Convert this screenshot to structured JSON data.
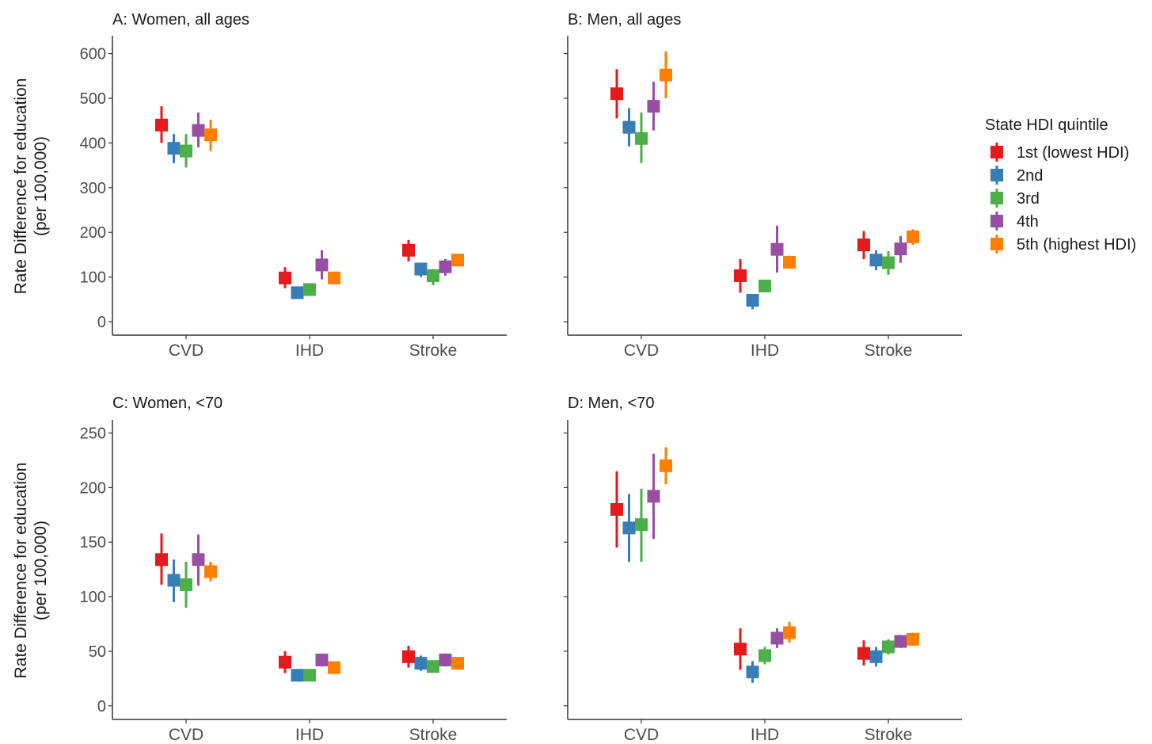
{
  "colors": [
    "#e41a1c",
    "#377eb8",
    "#4daf4a",
    "#984ea3",
    "#ff7f00"
  ],
  "legend": {
    "title": "State HDI quintile",
    "items": [
      "1st (lowest HDI)",
      "2nd",
      "3rd",
      "4th",
      "5th (highest HDI)"
    ]
  },
  "ylabel_line1": "Rate Difference for education",
  "ylabel_line2": "(per 100,000)",
  "chart_data": [
    {
      "type": "errorbar",
      "title": "A: Women, all ages",
      "categories": [
        "CVD",
        "IHD",
        "Stroke"
      ],
      "ylim": [
        -30,
        640
      ],
      "yticks": [
        0,
        100,
        200,
        300,
        400,
        500,
        600
      ],
      "series": [
        {
          "name": "1st (lowest HDI)",
          "values": [
            440,
            98,
            160
          ],
          "lower": [
            400,
            75,
            135
          ],
          "upper": [
            482,
            122,
            183
          ]
        },
        {
          "name": "2nd",
          "values": [
            388,
            65,
            118
          ],
          "lower": [
            355,
            58,
            100
          ],
          "upper": [
            420,
            72,
            132
          ]
        },
        {
          "name": "3rd",
          "values": [
            382,
            72,
            103
          ],
          "lower": [
            345,
            62,
            82
          ],
          "upper": [
            420,
            80,
            118
          ]
        },
        {
          "name": "4th",
          "values": [
            428,
            127,
            123
          ],
          "lower": [
            390,
            95,
            103
          ],
          "upper": [
            468,
            160,
            140
          ]
        },
        {
          "name": "5th (highest HDI)",
          "values": [
            418,
            98,
            138
          ],
          "lower": [
            382,
            90,
            130
          ],
          "upper": [
            452,
            106,
            146
          ]
        }
      ]
    },
    {
      "type": "errorbar",
      "title": "B: Men, all ages",
      "categories": [
        "CVD",
        "IHD",
        "Stroke"
      ],
      "ylim": [
        -30,
        640
      ],
      "yticks": [
        0,
        100,
        200,
        300,
        400,
        500,
        600
      ],
      "series": [
        {
          "name": "1st (lowest HDI)",
          "values": [
            510,
            103,
            172
          ],
          "lower": [
            455,
            65,
            140
          ],
          "upper": [
            565,
            140,
            203
          ]
        },
        {
          "name": "2nd",
          "values": [
            435,
            48,
            138
          ],
          "lower": [
            392,
            28,
            115
          ],
          "upper": [
            478,
            62,
            160
          ]
        },
        {
          "name": "3rd",
          "values": [
            410,
            80,
            132
          ],
          "lower": [
            355,
            72,
            105
          ],
          "upper": [
            468,
            88,
            158
          ]
        },
        {
          "name": "4th",
          "values": [
            482,
            162,
            163
          ],
          "lower": [
            428,
            110,
            132
          ],
          "upper": [
            537,
            215,
            192
          ]
        },
        {
          "name": "5th (highest HDI)",
          "values": [
            552,
            133,
            190
          ],
          "lower": [
            500,
            120,
            172
          ],
          "upper": [
            605,
            148,
            207
          ]
        }
      ]
    },
    {
      "type": "errorbar",
      "title": "C: Women, <70",
      "categories": [
        "CVD",
        "IHD",
        "Stroke"
      ],
      "ylim": [
        -12.5,
        262
      ],
      "yticks": [
        0,
        50,
        100,
        150,
        200,
        250
      ],
      "series": [
        {
          "name": "1st (lowest HDI)",
          "values": [
            134,
            40,
            45
          ],
          "lower": [
            111,
            30,
            35
          ],
          "upper": [
            158,
            50,
            55
          ]
        },
        {
          "name": "2nd",
          "values": [
            115,
            28,
            39
          ],
          "lower": [
            95,
            25,
            32
          ],
          "upper": [
            134,
            31,
            46
          ]
        },
        {
          "name": "3rd",
          "values": [
            111,
            28,
            36
          ],
          "lower": [
            90,
            24,
            31
          ],
          "upper": [
            132,
            32,
            41
          ]
        },
        {
          "name": "4th",
          "values": [
            134,
            42,
            42
          ],
          "lower": [
            110,
            36,
            36
          ],
          "upper": [
            157,
            47,
            48
          ]
        },
        {
          "name": "5th (highest HDI)",
          "values": [
            123,
            35,
            39
          ],
          "lower": [
            114,
            30,
            34
          ],
          "upper": [
            132,
            40,
            44
          ]
        }
      ]
    },
    {
      "type": "errorbar",
      "title": "D: Men, <70",
      "categories": [
        "CVD",
        "IHD",
        "Stroke"
      ],
      "ylim": [
        -12.5,
        262
      ],
      "yticks": [
        0,
        50,
        100,
        150,
        200,
        250
      ],
      "series": [
        {
          "name": "1st (lowest HDI)",
          "values": [
            180,
            52,
            48
          ],
          "lower": [
            145,
            33,
            37
          ],
          "upper": [
            215,
            71,
            60
          ]
        },
        {
          "name": "2nd",
          "values": [
            163,
            31,
            45
          ],
          "lower": [
            132,
            21,
            36
          ],
          "upper": [
            194,
            41,
            54
          ]
        },
        {
          "name": "3rd",
          "values": [
            166,
            46,
            54
          ],
          "lower": [
            132,
            38,
            47
          ],
          "upper": [
            199,
            54,
            61
          ]
        },
        {
          "name": "4th",
          "values": [
            192,
            62,
            59
          ],
          "lower": [
            153,
            53,
            53
          ],
          "upper": [
            231,
            71,
            65
          ]
        },
        {
          "name": "5th (highest HDI)",
          "values": [
            220,
            67,
            61
          ],
          "lower": [
            203,
            58,
            55
          ],
          "upper": [
            237,
            77,
            67
          ]
        }
      ]
    }
  ]
}
